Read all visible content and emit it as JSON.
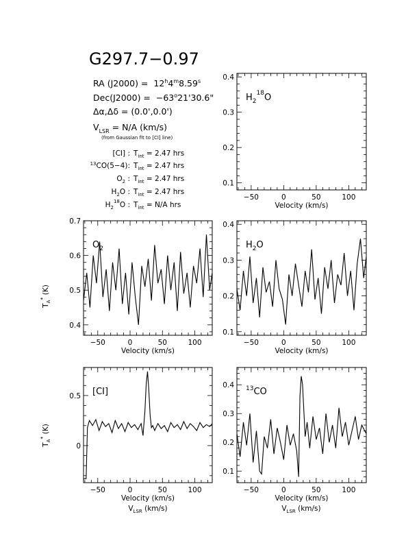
{
  "header": {
    "title": "G297.7−0.97",
    "ra_label": "RA (J2000) =",
    "ra_value": [
      "12",
      "h",
      "4",
      "m",
      "8.59",
      "s"
    ],
    "dec_label": "Dec(J2000) =",
    "dec_value": [
      "−63",
      "o",
      "21'30.6\""
    ],
    "offset_label": "Δα,Δδ = (0.0',0.0')",
    "vlsr_prefix": "V",
    "vlsr_sub": "LSR",
    "vlsr_rest": " = N/A  (km/s)",
    "gauss_note": "(from Gaussian fit to [CI] line)"
  },
  "integration": {
    "rows": [
      {
        "label": "[CI] :",
        "value": "T",
        "sub": "int",
        "rest": " = 2.47 hrs"
      },
      {
        "label": "CO(5−4):",
        "sup": "13",
        "value": "T",
        "sub": "int",
        "rest": " = 2.47 hrs"
      },
      {
        "label": "O",
        "label_sub": "2",
        "label_after": " :",
        "value": "T",
        "sub": "int",
        "rest": " = 2.47 hrs"
      },
      {
        "label": "H",
        "label_sub": "2",
        "label_after": "O :",
        "value": "T",
        "sub": "int",
        "rest": " = 2.47 hrs"
      },
      {
        "label": "H",
        "label_sub": "2",
        "label_sup": "18",
        "label_after": "O :",
        "value": "T",
        "sub": "int",
        "rest": " = N/A  hrs"
      }
    ]
  },
  "axis_text": {
    "velocity": "Velocity (km/s)",
    "vlsr": "V",
    "vlsr_sub": "LSR",
    "vlsr_rest": " (km/s)",
    "ta": "T",
    "ta_sub": "A",
    "ta_sup": "*",
    "ta_rest": " (K)"
  },
  "chart_data": [
    {
      "type": "line",
      "panel": "H2 18O",
      "label": {
        "main": "H",
        "sub": "2",
        "sup": "18",
        "after": "O"
      },
      "xlim": [
        -72,
        127
      ],
      "ylim": [
        0.08,
        0.41
      ],
      "xticks": [
        "−50",
        "0",
        "50",
        "100"
      ],
      "xtick_values": [
        -50,
        0,
        50,
        100
      ],
      "yticks": [
        "0.1",
        "0.2",
        "0.3",
        "0.4"
      ],
      "ytick_values": [
        0.1,
        0.2,
        0.3,
        0.4
      ],
      "xlabel": "Velocity (km/s)",
      "series": []
    },
    {
      "type": "line",
      "panel": "O2",
      "label": {
        "main": "O",
        "sub": "2"
      },
      "xlim": [
        -72,
        127
      ],
      "ylim": [
        0.37,
        0.7
      ],
      "xticks": [
        "−50",
        "0",
        "50",
        "100"
      ],
      "xtick_values": [
        -50,
        0,
        50,
        100
      ],
      "yticks": [
        "0.4",
        "0.5",
        "0.6",
        "0.7"
      ],
      "ytick_values": [
        0.4,
        0.5,
        0.6,
        0.7
      ],
      "xlabel": "Velocity (km/s)",
      "ylabel": "TA* (K)",
      "series": [
        {
          "x": [
            -72,
            -67,
            -62,
            -57,
            -52,
            -47,
            -42,
            -37,
            -32,
            -27,
            -22,
            -17,
            -12,
            -7,
            -2,
            3,
            8,
            13,
            18,
            23,
            28,
            33,
            38,
            43,
            48,
            53,
            58,
            63,
            68,
            73,
            78,
            83,
            88,
            93,
            98,
            103,
            108,
            113,
            118,
            123,
            127
          ],
          "y": [
            0.47,
            0.55,
            0.45,
            0.6,
            0.52,
            0.64,
            0.48,
            0.56,
            0.44,
            0.58,
            0.5,
            0.62,
            0.46,
            0.55,
            0.43,
            0.58,
            0.48,
            0.4,
            0.57,
            0.51,
            0.59,
            0.47,
            0.63,
            0.52,
            0.56,
            0.46,
            0.6,
            0.5,
            0.58,
            0.44,
            0.61,
            0.49,
            0.55,
            0.45,
            0.57,
            0.52,
            0.62,
            0.48,
            0.66,
            0.5,
            0.55
          ]
        }
      ]
    },
    {
      "type": "line",
      "panel": "H2O",
      "label": {
        "main": "H",
        "sub": "2",
        "after": "O"
      },
      "xlim": [
        -72,
        127
      ],
      "ylim": [
        0.09,
        0.41
      ],
      "xticks": [
        "−50",
        "0",
        "50",
        "100"
      ],
      "xtick_values": [
        -50,
        0,
        50,
        100
      ],
      "yticks": [
        "0.1",
        "0.2",
        "0.3",
        "0.4"
      ],
      "ytick_values": [
        0.1,
        0.2,
        0.3,
        0.4
      ],
      "xlabel": "Velocity (km/s)",
      "series": [
        {
          "x": [
            -72,
            -67,
            -62,
            -57,
            -52,
            -47,
            -42,
            -37,
            -32,
            -27,
            -22,
            -17,
            -12,
            -7,
            -2,
            3,
            8,
            13,
            18,
            23,
            28,
            33,
            38,
            43,
            48,
            53,
            58,
            63,
            68,
            73,
            78,
            83,
            88,
            93,
            98,
            103,
            108,
            113,
            118,
            123,
            127
          ],
          "y": [
            0.22,
            0.16,
            0.27,
            0.2,
            0.31,
            0.18,
            0.25,
            0.14,
            0.28,
            0.21,
            0.24,
            0.17,
            0.3,
            0.22,
            0.19,
            0.12,
            0.26,
            0.2,
            0.29,
            0.23,
            0.17,
            0.27,
            0.21,
            0.33,
            0.19,
            0.25,
            0.15,
            0.28,
            0.22,
            0.3,
            0.18,
            0.26,
            0.23,
            0.32,
            0.2,
            0.27,
            0.16,
            0.29,
            0.36,
            0.25,
            0.31
          ]
        }
      ]
    },
    {
      "type": "line",
      "panel": "[CI]",
      "label": {
        "main": "[CI]"
      },
      "xlim": [
        -72,
        127
      ],
      "ylim": [
        -0.37,
        0.78
      ],
      "xticks": [
        "−50",
        "0",
        "50",
        "100"
      ],
      "xtick_values": [
        -50,
        0,
        50,
        100
      ],
      "yticks": [
        "0",
        "0.5"
      ],
      "ytick_values": [
        0,
        0.5
      ],
      "xlabel": "Velocity (km/s)",
      "ylabel": "TA* (K)",
      "series": [
        {
          "x": [
            -72,
            -70,
            -68,
            -66,
            -63,
            -58,
            -53,
            -48,
            -43,
            -38,
            -33,
            -28,
            -23,
            -18,
            -13,
            -8,
            -3,
            2,
            7,
            12,
            17,
            20,
            23,
            25,
            27,
            29,
            31,
            33,
            35,
            38,
            43,
            48,
            53,
            58,
            63,
            68,
            73,
            78,
            83,
            88,
            93,
            98,
            103,
            108,
            113,
            118,
            123,
            127
          ],
          "y": [
            -0.33,
            -0.33,
            -0.33,
            0.18,
            0.25,
            0.2,
            0.26,
            0.15,
            0.24,
            0.19,
            0.22,
            0.13,
            0.25,
            0.17,
            0.22,
            0.14,
            0.23,
            0.18,
            0.21,
            0.16,
            0.22,
            0.1,
            0.35,
            0.62,
            0.74,
            0.55,
            0.3,
            0.18,
            0.2,
            0.15,
            0.22,
            0.17,
            0.2,
            0.14,
            0.23,
            0.18,
            0.21,
            0.16,
            0.24,
            0.17,
            0.22,
            0.19,
            0.15,
            0.23,
            0.18,
            0.21,
            0.19,
            0.22
          ]
        }
      ]
    },
    {
      "type": "line",
      "panel": "13CO",
      "label": {
        "main": "CO",
        "sup": "13"
      },
      "xlim": [
        -72,
        127
      ],
      "ylim": [
        0.06,
        0.46
      ],
      "xticks": [
        "−50",
        "0",
        "50",
        "100"
      ],
      "xtick_values": [
        -50,
        0,
        50,
        100
      ],
      "yticks": [
        "0.1",
        "0.2",
        "0.3",
        "0.4"
      ],
      "ytick_values": [
        0.1,
        0.2,
        0.3,
        0.4
      ],
      "xlabel": "Velocity (km/s)",
      "series": [
        {
          "x": [
            -72,
            -67,
            -62,
            -57,
            -52,
            -47,
            -42,
            -37,
            -34,
            -30,
            -25,
            -20,
            -15,
            -10,
            -5,
            0,
            5,
            10,
            15,
            20,
            23,
            25,
            27,
            29,
            31,
            33,
            36,
            40,
            45,
            50,
            55,
            60,
            65,
            70,
            75,
            80,
            85,
            90,
            95,
            100,
            105,
            110,
            115,
            120,
            127
          ],
          "y": [
            0.23,
            0.15,
            0.27,
            0.19,
            0.3,
            0.13,
            0.24,
            0.1,
            0.09,
            0.22,
            0.18,
            0.28,
            0.16,
            0.25,
            0.2,
            0.14,
            0.26,
            0.19,
            0.23,
            0.17,
            0.08,
            0.36,
            0.43,
            0.4,
            0.31,
            0.22,
            0.27,
            0.18,
            0.29,
            0.21,
            0.25,
            0.16,
            0.3,
            0.2,
            0.26,
            0.18,
            0.32,
            0.22,
            0.27,
            0.19,
            0.24,
            0.29,
            0.21,
            0.26,
            0.23
          ]
        }
      ]
    }
  ]
}
